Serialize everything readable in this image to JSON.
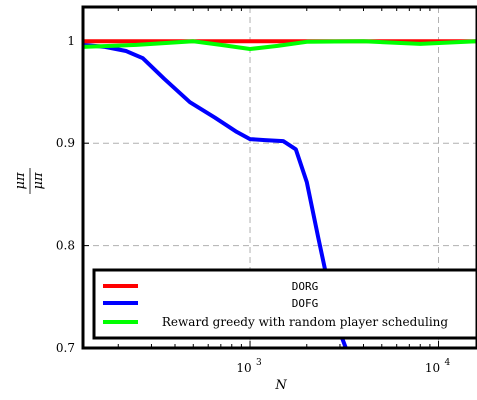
{
  "chart_data": {
    "type": "line",
    "title": "",
    "xlabel": "N",
    "ylabel_num": "μπ",
    "ylabel_den": "μπ",
    "xscale": "log",
    "xlim": [
      130,
      16000
    ],
    "ylim": [
      0.7,
      1.033
    ],
    "xticks": [
      {
        "value": 1000,
        "base": "10",
        "exp": "3"
      },
      {
        "value": 10000,
        "base": "10",
        "exp": "4"
      }
    ],
    "yticks": [
      {
        "value": 1.0,
        "label": "1"
      },
      {
        "value": 0.9,
        "label": "0.9"
      },
      {
        "value": 0.8,
        "label": "0.8"
      },
      {
        "value": 0.7,
        "label": "0.7"
      }
    ],
    "grid": true,
    "legend_position": "bottom-right",
    "series": [
      {
        "name": "DORG",
        "color": "#ff0000",
        "points": [
          [
            130,
            0.9995
          ],
          [
            500,
            0.9995
          ],
          [
            2000,
            0.9995
          ],
          [
            16000,
            0.9995
          ]
        ]
      },
      {
        "name": "DOFG",
        "color": "#0000ff",
        "points": [
          [
            130,
            0.996
          ],
          [
            170,
            0.994
          ],
          [
            220,
            0.99
          ],
          [
            270,
            0.983
          ],
          [
            350,
            0.963
          ],
          [
            480,
            0.94
          ],
          [
            650,
            0.925
          ],
          [
            850,
            0.911
          ],
          [
            1000,
            0.904
          ],
          [
            1200,
            0.903
          ],
          [
            1500,
            0.902
          ],
          [
            1750,
            0.894
          ],
          [
            2000,
            0.862
          ],
          [
            2300,
            0.808
          ],
          [
            2700,
            0.748
          ],
          [
            3000,
            0.715
          ],
          [
            3300,
            0.695
          ]
        ]
      },
      {
        "name": "Reward greedy with random player scheduling",
        "color": "#00ff00",
        "points": [
          [
            130,
            0.994
          ],
          [
            250,
            0.996
          ],
          [
            500,
            0.9995
          ],
          [
            700,
            0.996
          ],
          [
            1000,
            0.992
          ],
          [
            1400,
            0.995
          ],
          [
            2000,
            0.999
          ],
          [
            4000,
            0.9995
          ],
          [
            8000,
            0.997
          ],
          [
            16000,
            0.9995
          ]
        ]
      }
    ]
  }
}
